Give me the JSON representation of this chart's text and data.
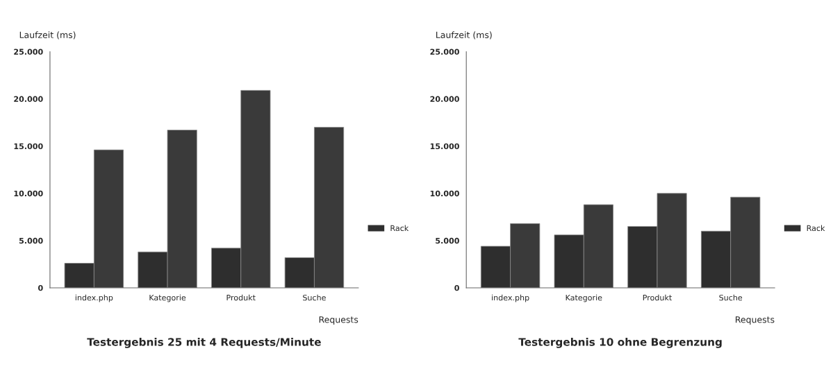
{
  "chart_data": [
    {
      "type": "bar",
      "title": "Testergebnis 25 mit 4 Requests/Minute",
      "xlabel": "Requests",
      "ylabel": "Laufzeit (ms)",
      "categories": [
        "index.php",
        "Kategorie",
        "Produkt",
        "Suche"
      ],
      "series": [
        {
          "name": "Rack",
          "color": "#2e2e2e",
          "values": [
            2600,
            3800,
            4200,
            3200
          ]
        },
        {
          "color": "#3a3a3a",
          "values": [
            14600,
            16700,
            20900,
            17000
          ]
        }
      ],
      "ylim": [
        0,
        25000
      ],
      "yticks": [
        0,
        {
          "value": 5000,
          "label": "5.000"
        },
        {
          "value": 10000,
          "label": "10.000"
        },
        {
          "value": 15000,
          "label": "15.000"
        },
        {
          "value": 20000,
          "label": "20.000"
        },
        {
          "value": 25000,
          "label": "25.000"
        }
      ],
      "grid": false,
      "legend": "right"
    },
    {
      "type": "bar",
      "title": "Testergebnis 10 ohne Begrenzung",
      "xlabel": "Requests",
      "ylabel": "Laufzeit (ms)",
      "categories": [
        "index.php",
        "Kategorie",
        "Produkt",
        "Suche"
      ],
      "series": [
        {
          "name": "Rack",
          "color": "#2e2e2e",
          "values": [
            4400,
            5600,
            6500,
            6000
          ]
        },
        {
          "color": "#3a3a3a",
          "values": [
            6800,
            8800,
            10000,
            9600
          ]
        }
      ],
      "ylim": [
        0,
        25000
      ],
      "yticks": [
        0,
        {
          "value": 5000,
          "label": "5.000"
        },
        {
          "value": 10000,
          "label": "10.000"
        },
        {
          "value": 15000,
          "label": "15.000"
        },
        {
          "value": 20000,
          "label": "20.000"
        },
        {
          "value": 25000,
          "label": "25.000"
        }
      ],
      "grid": false,
      "legend": "right"
    }
  ]
}
